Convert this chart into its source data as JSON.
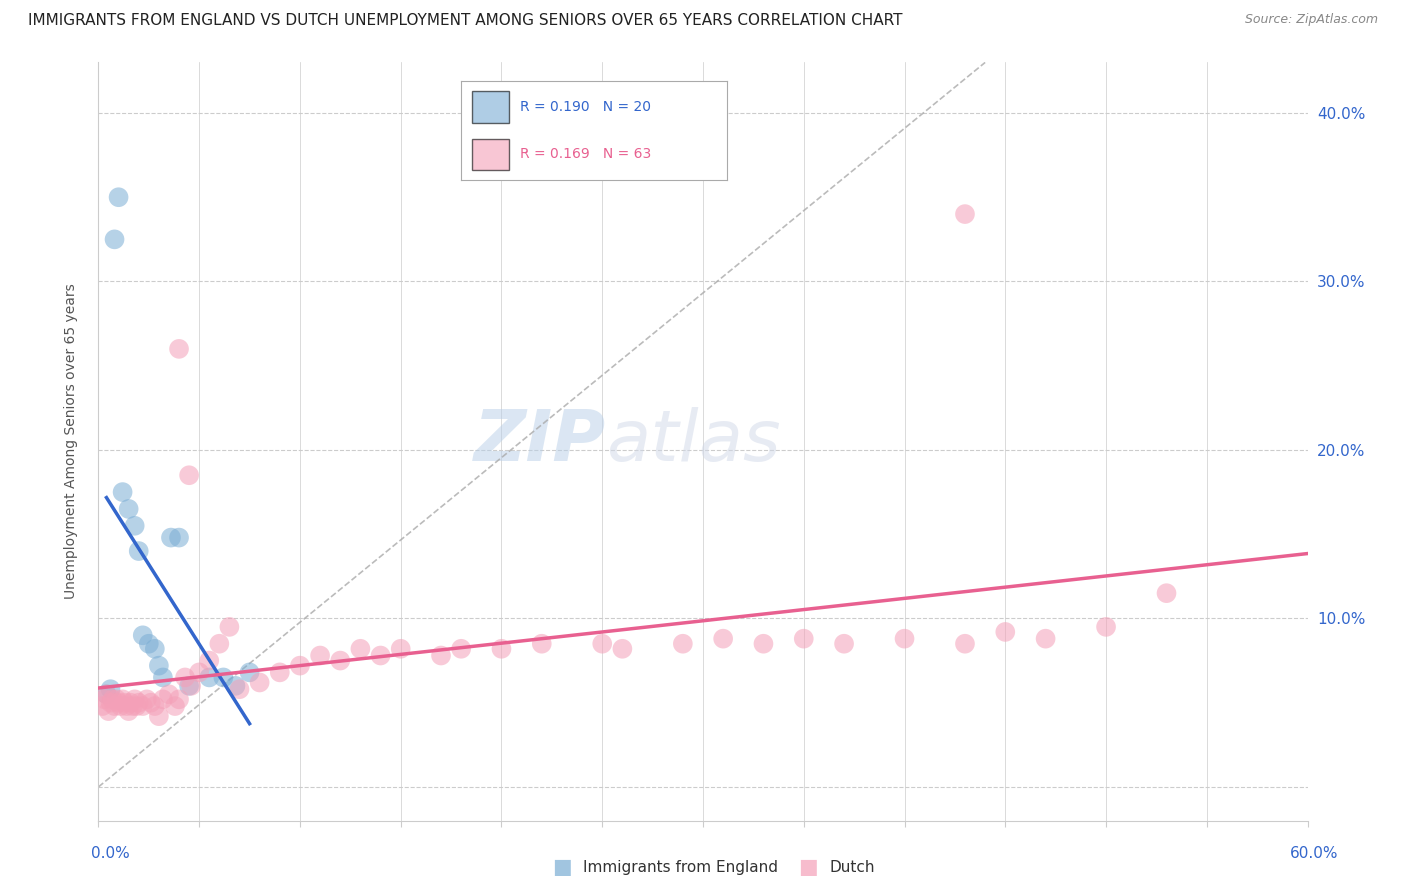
{
  "title": "IMMIGRANTS FROM ENGLAND VS DUTCH UNEMPLOYMENT AMONG SENIORS OVER 65 YEARS CORRELATION CHART",
  "source": "Source: ZipAtlas.com",
  "ylabel": "Unemployment Among Seniors over 65 years",
  "xlim": [
    0.0,
    0.6
  ],
  "ylim": [
    -0.02,
    0.43
  ],
  "y_ticks": [
    0.0,
    0.1,
    0.2,
    0.3,
    0.4
  ],
  "y_tick_labels": [
    "",
    "10.0%",
    "20.0%",
    "30.0%",
    "40.0%"
  ],
  "england_color": "#7aadd4",
  "dutch_color": "#f4a0b8",
  "trendline_england_color": "#3366cc",
  "trendline_dutch_color": "#e86090",
  "trendline_dashed_color": "#aaaaaa",
  "background_color": "#ffffff",
  "eng_x": [
    0.004,
    0.006,
    0.008,
    0.01,
    0.012,
    0.015,
    0.018,
    0.02,
    0.022,
    0.025,
    0.028,
    0.03,
    0.032,
    0.036,
    0.04,
    0.045,
    0.055,
    0.062,
    0.068,
    0.075
  ],
  "eng_y": [
    0.055,
    0.058,
    0.325,
    0.35,
    0.175,
    0.165,
    0.155,
    0.14,
    0.09,
    0.085,
    0.082,
    0.072,
    0.065,
    0.148,
    0.148,
    0.06,
    0.065,
    0.065,
    0.06,
    0.068
  ],
  "dutch_x": [
    0.002,
    0.003,
    0.004,
    0.005,
    0.006,
    0.007,
    0.008,
    0.009,
    0.01,
    0.011,
    0.012,
    0.013,
    0.014,
    0.015,
    0.016,
    0.017,
    0.018,
    0.019,
    0.02,
    0.022,
    0.024,
    0.026,
    0.028,
    0.03,
    0.032,
    0.035,
    0.038,
    0.04,
    0.043,
    0.046,
    0.05,
    0.055,
    0.06,
    0.065,
    0.07,
    0.08,
    0.09,
    0.1,
    0.11,
    0.12,
    0.13,
    0.14,
    0.15,
    0.17,
    0.18,
    0.2,
    0.22,
    0.25,
    0.26,
    0.29,
    0.31,
    0.33,
    0.35,
    0.37,
    0.4,
    0.43,
    0.45,
    0.47,
    0.5,
    0.53,
    0.04,
    0.045,
    0.43
  ],
  "dutch_y": [
    0.048,
    0.052,
    0.055,
    0.045,
    0.05,
    0.052,
    0.048,
    0.052,
    0.05,
    0.048,
    0.052,
    0.05,
    0.048,
    0.045,
    0.05,
    0.048,
    0.052,
    0.048,
    0.05,
    0.048,
    0.052,
    0.05,
    0.048,
    0.042,
    0.052,
    0.055,
    0.048,
    0.052,
    0.065,
    0.06,
    0.068,
    0.075,
    0.085,
    0.095,
    0.058,
    0.062,
    0.068,
    0.072,
    0.078,
    0.075,
    0.082,
    0.078,
    0.082,
    0.078,
    0.082,
    0.082,
    0.085,
    0.085,
    0.082,
    0.085,
    0.088,
    0.085,
    0.088,
    0.085,
    0.088,
    0.085,
    0.092,
    0.088,
    0.095,
    0.115,
    0.26,
    0.185,
    0.34
  ],
  "title_fontsize": 11,
  "source_fontsize": 9,
  "tick_fontsize": 11
}
